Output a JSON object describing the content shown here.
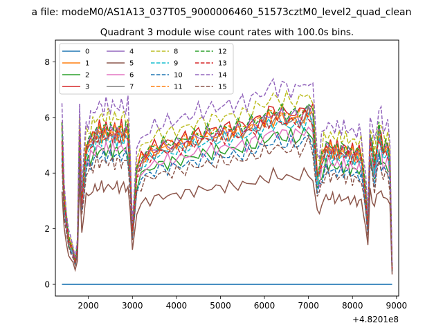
{
  "chart_data": {
    "type": "line",
    "suptitle": "a file: modeM0/AS1A13_037T05_9000006460_51573cztM0_level2_quad_clean",
    "title": "Quadrant 3 module wise count rates with 100.0s bins.",
    "xlabel": "",
    "ylabel": "",
    "x_offset_label": "+4.8201e8",
    "xlim": [
      1250,
      9050
    ],
    "ylim": [
      -0.42,
      8.78
    ],
    "xticks": [
      "2000",
      "3000",
      "4000",
      "5000",
      "6000",
      "7000",
      "8000",
      "9000"
    ],
    "yticks": [
      "0",
      "2",
      "4",
      "6",
      "8"
    ],
    "legend": {
      "position": "top-left",
      "columns": 4
    },
    "grid": false,
    "x_segments": [
      {
        "start": 1400,
        "end": 1750,
        "step": 50
      },
      {
        "start": 1800,
        "end": 2950,
        "step": 50
      },
      {
        "start": 3000,
        "end": 7200,
        "step": 100
      },
      {
        "start": 7250,
        "end": 8400,
        "step": 50
      },
      {
        "start": 8450,
        "end": 8900,
        "step": 50
      }
    ],
    "anchors": {
      "x": [
        1400,
        1450,
        1550,
        1650,
        1700,
        1750,
        1800,
        1850,
        1950,
        2200,
        2500,
        2900,
        2950,
        3000,
        3050,
        3150,
        3300,
        3600,
        4000,
        4500,
        5000,
        5500,
        6000,
        6200,
        6500,
        6800,
        7000,
        7100,
        7150,
        7200,
        7250,
        7300,
        7400,
        7600,
        7800,
        8000,
        8200,
        8300,
        8350,
        8400,
        8450,
        8500,
        8600,
        8700,
        8800,
        8850,
        8900
      ],
      "shape": [
        1.0,
        0.55,
        0.3,
        0.22,
        0.15,
        0.25,
        1.0,
        0.55,
        0.9,
        1.0,
        1.0,
        1.0,
        0.75,
        0.35,
        0.7,
        0.8,
        0.85,
        0.9,
        0.92,
        0.97,
        1.0,
        1.02,
        1.08,
        1.12,
        1.1,
        1.1,
        1.15,
        1.1,
        0.95,
        0.72,
        0.75,
        0.82,
        0.9,
        0.88,
        0.88,
        0.86,
        0.85,
        0.6,
        0.4,
        0.95,
        0.9,
        0.78,
        1.0,
        0.88,
        0.9,
        0.8,
        0.1
      ]
    },
    "series": [
      {
        "name": "0",
        "color": "#1f77b4",
        "dash": "solid",
        "level": 0.0,
        "amp": 0.0
      },
      {
        "name": "1",
        "color": "#ff7f0e",
        "dash": "solid",
        "level": 5.4,
        "amp": 0.35
      },
      {
        "name": "2",
        "color": "#2ca02c",
        "dash": "solid",
        "level": 4.8,
        "amp": 0.3
      },
      {
        "name": "3",
        "color": "#d62728",
        "dash": "solid",
        "level": 5.6,
        "amp": 0.35
      },
      {
        "name": "4",
        "color": "#9467bd",
        "dash": "solid",
        "level": 5.5,
        "amp": 0.3
      },
      {
        "name": "5",
        "color": "#8c564b",
        "dash": "solid",
        "level": 3.5,
        "amp": 0.25
      },
      {
        "name": "6",
        "color": "#e377c2",
        "dash": "solid",
        "level": 4.9,
        "amp": 0.3
      },
      {
        "name": "7",
        "color": "#7f7f7f",
        "dash": "solid",
        "level": 5.3,
        "amp": 0.3
      },
      {
        "name": "8",
        "color": "#bcbd22",
        "dash": "dashed",
        "level": 6.0,
        "amp": 0.35
      },
      {
        "name": "9",
        "color": "#17becf",
        "dash": "dashed",
        "level": 5.2,
        "amp": 0.3
      },
      {
        "name": "10",
        "color": "#1f77b4",
        "dash": "dashed",
        "level": 4.6,
        "amp": 0.3
      },
      {
        "name": "11",
        "color": "#ff7f0e",
        "dash": "dashed",
        "level": 5.5,
        "amp": 0.3
      },
      {
        "name": "12",
        "color": "#2ca02c",
        "dash": "dashed",
        "level": 5.6,
        "amp": 0.3
      },
      {
        "name": "13",
        "color": "#d62728",
        "dash": "dashed",
        "level": 5.3,
        "amp": 0.3
      },
      {
        "name": "14",
        "color": "#9467bd",
        "dash": "dashed",
        "level": 6.4,
        "amp": 0.4
      },
      {
        "name": "15",
        "color": "#8c564b",
        "dash": "dashed",
        "level": 4.4,
        "amp": 0.3
      }
    ]
  }
}
